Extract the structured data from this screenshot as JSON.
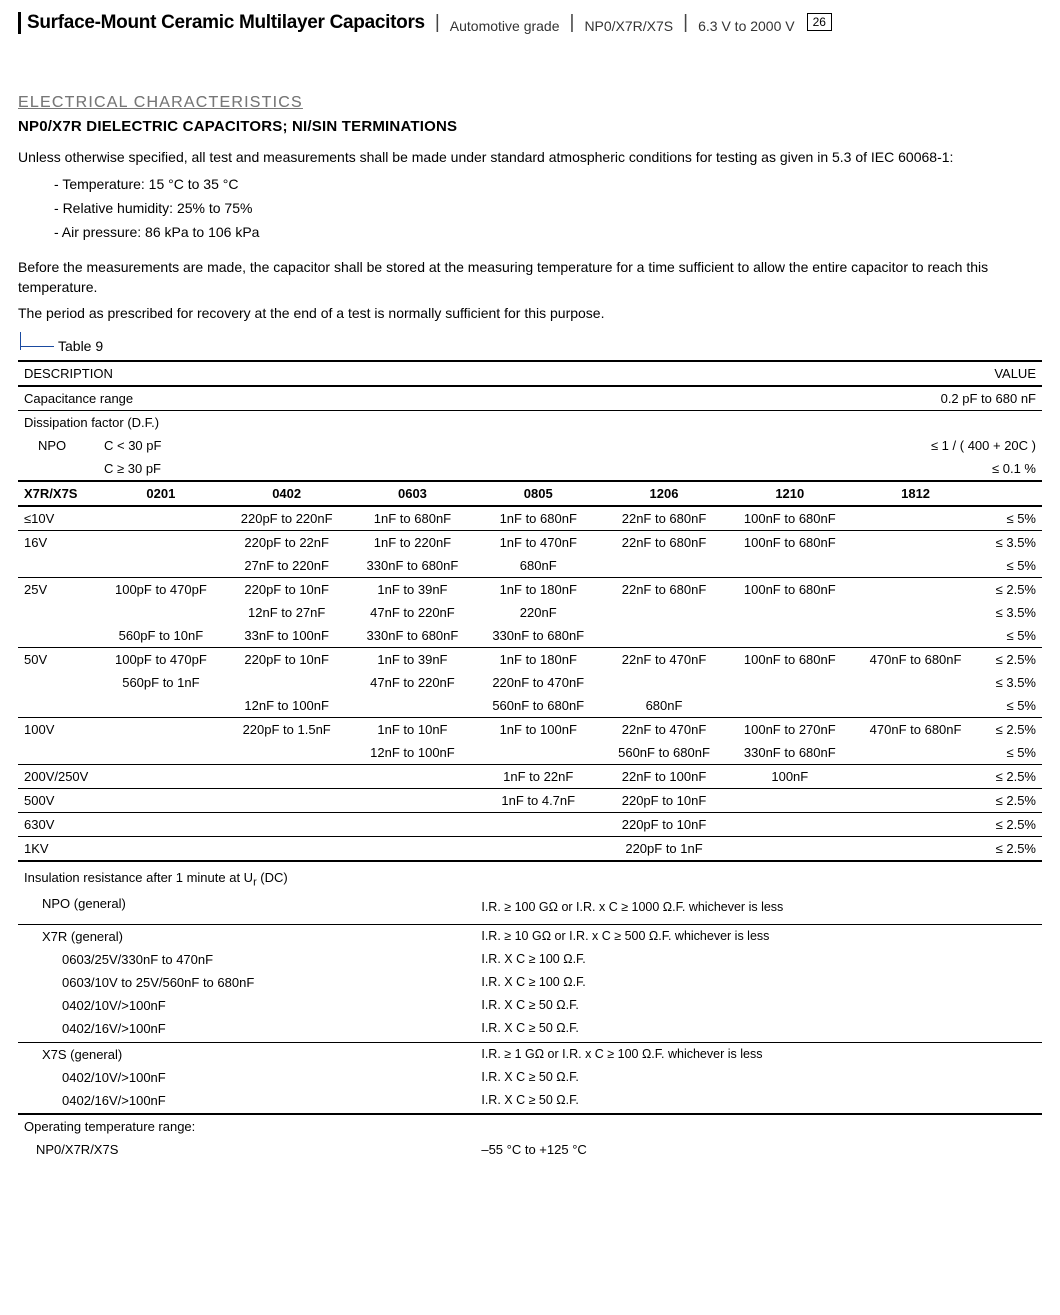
{
  "header": {
    "title": "Surface-Mount Ceramic Multilayer Capacitors",
    "sub1": "Automotive grade",
    "sub2": "NP0/X7R/X7S",
    "sub3": "6.3 V to 2000 V",
    "page": "26"
  },
  "section": {
    "eyebrow": "ELECTRICAL CHARACTERISTICS",
    "title": "NP0/X7R DIELECTRIC CAPACITORS; NI/SIN TERMINATIONS",
    "intro1": "Unless otherwise specified, all test and measurements shall be made under standard atmospheric conditions for testing as given in 5.3 of IEC 60068-1:",
    "bullets": [
      "Temperature: 15 °C to 35 °C",
      "Relative humidity: 25% to 75%",
      "Air pressure: 86 kPa to 106 kPa"
    ],
    "intro2": "Before the measurements are made, the capacitor shall be stored at the measuring temperature for a time sufficient to allow the entire capacitor to reach this temperature.",
    "intro3": "The period as prescribed for recovery at the end of a test is normally sufficient for this purpose."
  },
  "table": {
    "label": "Table 9",
    "col_desc": "DESCRIPTION",
    "col_value": "VALUE",
    "cap_range_label": "Capacitance range",
    "cap_range_value": "0.2 pF to 680 nF",
    "df_label": "Dissipation factor (D.F.)",
    "npo_label": "NPO",
    "npo_c1_label": "C < 30 pF",
    "npo_c1_value": "≤ 1 / ( 400 + 20C )",
    "npo_c2_label": "C ≥ 30 pF",
    "npo_c2_value": "≤ 0.1 %",
    "x7r_label": "X7R/X7S",
    "sizes": [
      "0201",
      "0402",
      "0603",
      "0805",
      "1206",
      "1210",
      "1812"
    ],
    "rows": [
      {
        "v": "≤10V",
        "cells": [
          "",
          "220pF to 220nF",
          "1nF to 680nF",
          "1nF to 680nF",
          "22nF to 680nF",
          "100nF to 680nF",
          ""
        ],
        "df": "≤ 5%",
        "bb": "thin-b"
      },
      {
        "v": "16V",
        "cells": [
          "",
          "220pF to 22nF",
          "1nF to 220nF",
          "1nF to 470nF",
          "22nF to 680nF",
          "100nF to 680nF",
          ""
        ],
        "df": "≤ 3.5%",
        "bb": ""
      },
      {
        "v": "",
        "cells": [
          "",
          "27nF to 220nF",
          "330nF to 680nF",
          "680nF",
          "",
          "",
          ""
        ],
        "df": "≤ 5%",
        "bb": "thin-b"
      },
      {
        "v": "25V",
        "cells": [
          "100pF to 470pF",
          "220pF to 10nF",
          "1nF to 39nF",
          "1nF to 180nF",
          "22nF to 680nF",
          "100nF to 680nF",
          ""
        ],
        "df": "≤ 2.5%",
        "bb": ""
      },
      {
        "v": "",
        "cells": [
          "",
          "12nF to 27nF",
          "47nF to 220nF",
          "220nF",
          "",
          "",
          ""
        ],
        "df": "≤ 3.5%",
        "bb": ""
      },
      {
        "v": "",
        "cells": [
          "560pF to 10nF",
          "33nF to 100nF",
          "330nF to 680nF",
          "330nF to 680nF",
          "",
          "",
          ""
        ],
        "df": "≤ 5%",
        "bb": "thin-b"
      },
      {
        "v": "50V",
        "cells": [
          "100pF to 470pF",
          "220pF to 10nF",
          "1nF to 39nF",
          "1nF to 180nF",
          "22nF to 470nF",
          "100nF to 680nF",
          "470nF to 680nF"
        ],
        "df": "≤ 2.5%",
        "bb": ""
      },
      {
        "v": "",
        "cells": [
          "560pF to 1nF",
          "",
          "47nF to 220nF",
          "220nF to 470nF",
          "",
          "",
          ""
        ],
        "df": "≤ 3.5%",
        "bb": ""
      },
      {
        "v": "",
        "cells": [
          "",
          "12nF to 100nF",
          "",
          "560nF to 680nF",
          "680nF",
          "",
          ""
        ],
        "df": "≤ 5%",
        "bb": "thin-b"
      },
      {
        "v": "100V",
        "cells": [
          "",
          "220pF to 1.5nF",
          "1nF to 10nF",
          "1nF to 100nF",
          "22nF to 470nF",
          "100nF to 270nF",
          "470nF to 680nF"
        ],
        "df": "≤ 2.5%",
        "bb": ""
      },
      {
        "v": "",
        "cells": [
          "",
          "",
          "12nF to 100nF",
          "",
          "560nF to 680nF",
          "330nF to 680nF",
          ""
        ],
        "df": "≤ 5%",
        "bb": "thin-b"
      },
      {
        "v": "200V/250V",
        "cells": [
          "",
          "",
          "",
          "1nF to 22nF",
          "22nF to 100nF",
          "100nF",
          ""
        ],
        "df": "≤ 2.5%",
        "bb": "thin-b"
      },
      {
        "v": "500V",
        "cells": [
          "",
          "",
          "",
          "1nF to 4.7nF",
          "220pF to 10nF",
          "",
          ""
        ],
        "df": "≤ 2.5%",
        "bb": "thin-b"
      },
      {
        "v": "630V",
        "cells": [
          "",
          "",
          "",
          "",
          "220pF to 10nF",
          "",
          ""
        ],
        "df": "≤ 2.5%",
        "bb": "thin-b"
      },
      {
        "v": "1KV",
        "cells": [
          "",
          "",
          "",
          "",
          "220pF to 1nF",
          "",
          ""
        ],
        "df": "≤ 2.5%",
        "bb": "thick-b"
      }
    ],
    "ir_title": "Insulation resistance after 1 minute at U",
    "ir_title_sub": "r",
    "ir_title_suffix": " (DC)",
    "npo_gen_label": "NPO (general)",
    "npo_gen_value": "I.R. ≥ 100 GΩ or I.R. x C ≥ 1000 Ω.F. whichever is less",
    "x7r_gen_label": "X7R (general)",
    "x7r_gen_value": "I.R. ≥ 10 GΩ or I.R. x C ≥ 500 Ω.F. whichever is less",
    "x7r_lines": [
      {
        "l": "0603/25V/330nF to 470nF",
        "r": "I.R. X C ≥ 100 Ω.F."
      },
      {
        "l": "0603/10V to 25V/560nF to 680nF",
        "r": "I.R. X C ≥ 100 Ω.F."
      },
      {
        "l": "0402/10V/>100nF",
        "r": "I.R. X C ≥ 50 Ω.F."
      },
      {
        "l": "0402/16V/>100nF",
        "r": "I.R. X C ≥ 50 Ω.F."
      }
    ],
    "x7s_gen_label": "X7S  (general)",
    "x7s_gen_value": "I.R. ≥ 1 GΩ or I.R. x C ≥ 100 Ω.F. whichever is less",
    "x7s_lines": [
      {
        "l": "0402/10V/>100nF",
        "r": "I.R. X C ≥ 50 Ω.F."
      },
      {
        "l": "0402/16V/>100nF",
        "r": "I.R. X C ≥ 50 Ω.F."
      }
    ],
    "op_label": "Operating temperature range:",
    "op_sub": "NP0/X7R/X7S",
    "op_value": "–55 °C to +125 °C"
  }
}
